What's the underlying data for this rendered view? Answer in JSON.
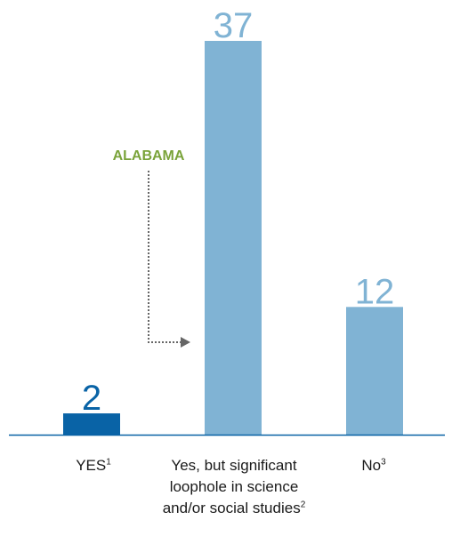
{
  "chart_data": {
    "type": "bar",
    "categories": [
      "YES",
      "Yes, but significant loophole in science and/or social studies",
      "No"
    ],
    "footnotes": [
      "1",
      "2",
      "3"
    ],
    "values": [
      2,
      37,
      12
    ],
    "data_labels": [
      "2",
      "37",
      "12"
    ],
    "ylim": [
      0,
      37
    ],
    "grid": false,
    "legend": "none",
    "colors": [
      "#0963a6",
      "#80b3d4",
      "#80b3d4"
    ],
    "label_colors": [
      "#0963a6",
      "#80b3d4",
      "#80b3d4"
    ],
    "baseline_color": "#0963a6",
    "annotation": {
      "text": "ALABAMA",
      "color": "#7aa33a",
      "target_category": 1,
      "arrow_color": "#666666"
    }
  }
}
